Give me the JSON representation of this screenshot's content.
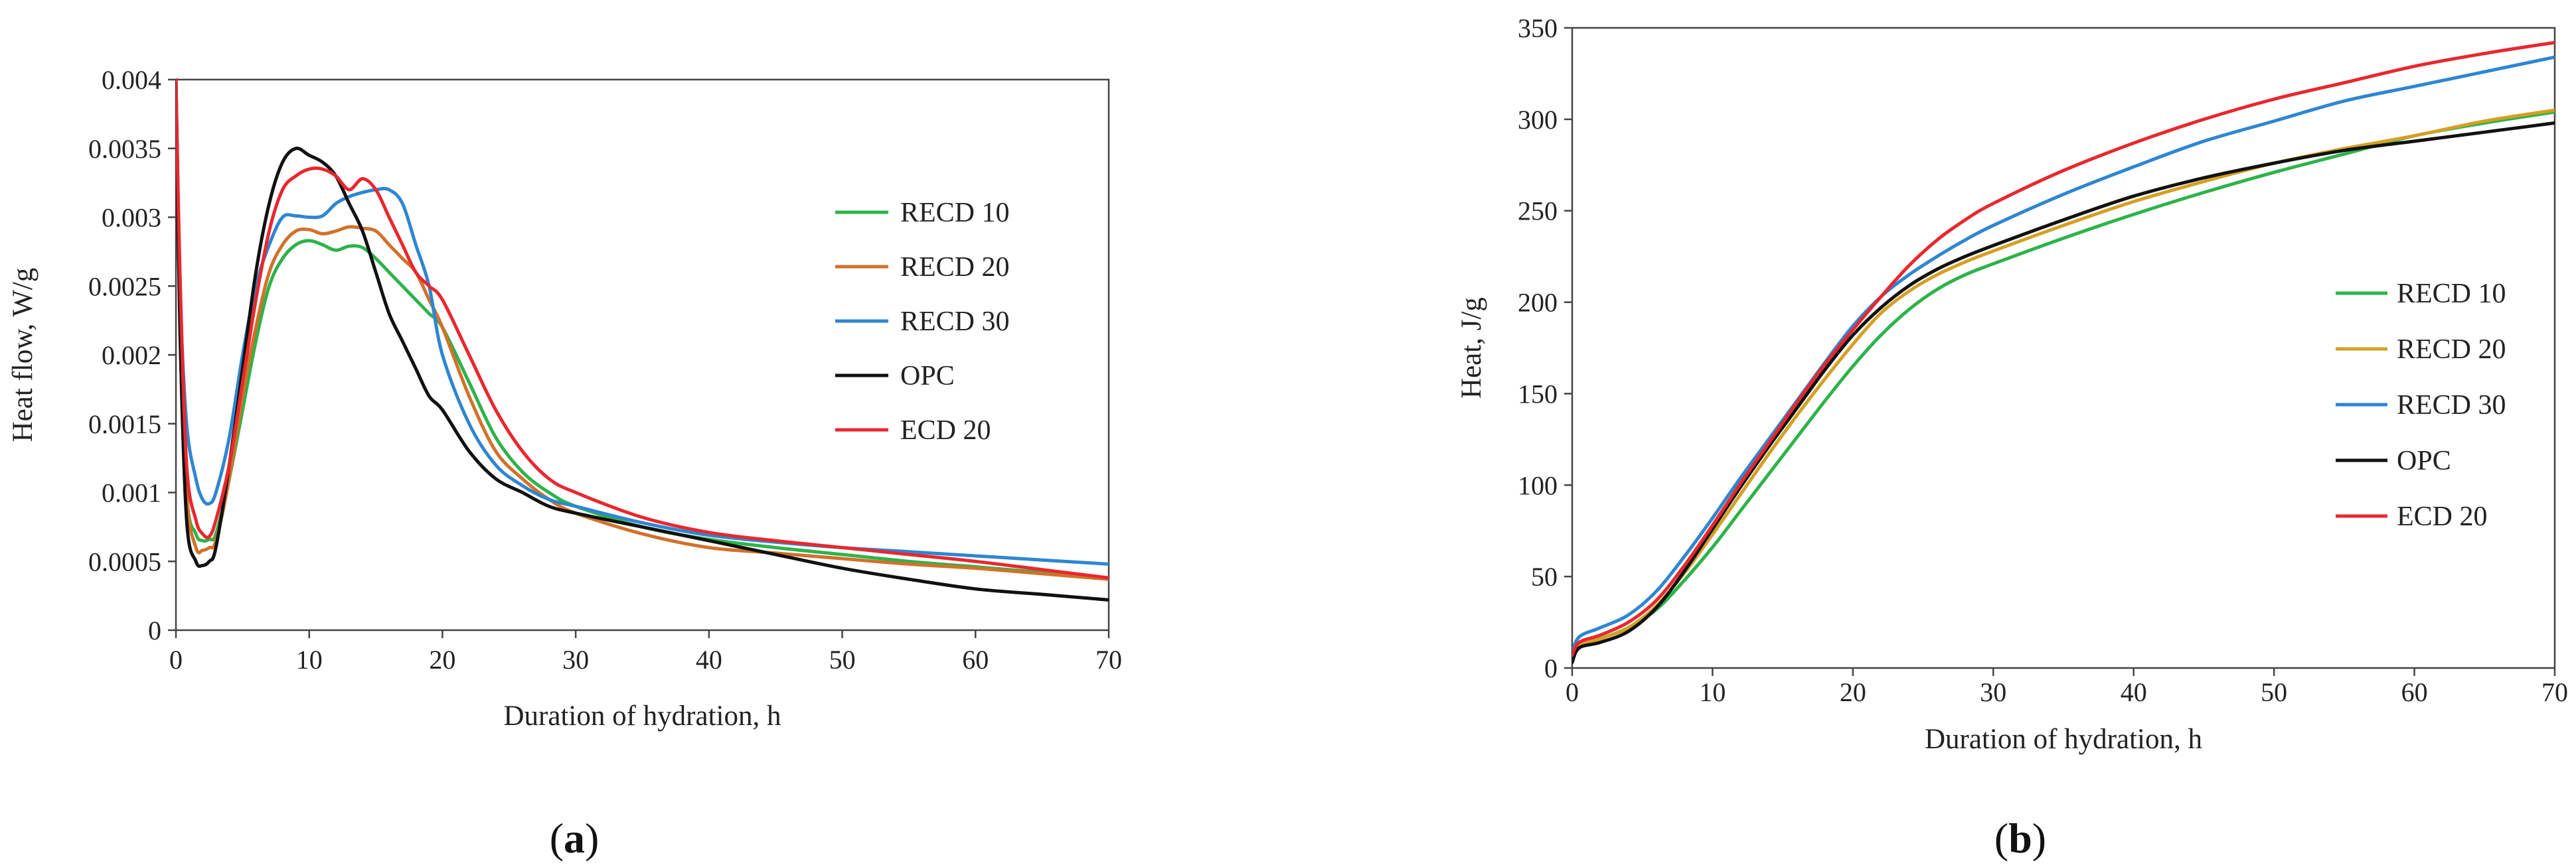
{
  "chart_data": [
    {
      "type": "line",
      "panel_label": "a",
      "title": "",
      "xlabel": "Duration of hydration, h",
      "ylabel": "Heat flow, W/g",
      "xlim": [
        0,
        70
      ],
      "ylim": [
        0,
        0.004
      ],
      "xticks": [
        "0",
        "10",
        "20",
        "30",
        "40",
        "50",
        "60",
        "70"
      ],
      "yticks": [
        "0",
        "0.0005",
        "0.001",
        "0.0015",
        "0.002",
        "0.0025",
        "0.003",
        "0.0035",
        "0.004"
      ],
      "grid": false,
      "legend_position": "right",
      "series": [
        {
          "name": "RECD 10",
          "color": "#2db34a",
          "x": [
            0,
            0.3,
            0.8,
            1.5,
            2,
            2.5,
            3,
            4,
            5,
            6,
            7,
            8,
            9,
            10,
            11,
            12,
            13,
            14,
            15,
            16,
            17,
            18,
            19,
            20,
            22,
            24,
            26,
            28,
            30,
            35,
            40,
            45,
            50,
            55,
            60,
            65,
            70
          ],
          "y": [
            0.004,
            0.0025,
            0.001,
            0.0007,
            0.00065,
            0.00066,
            0.0007,
            0.0011,
            0.0016,
            0.0021,
            0.0025,
            0.0027,
            0.0028,
            0.00283,
            0.0028,
            0.00276,
            0.00279,
            0.00278,
            0.0027,
            0.0026,
            0.0025,
            0.0024,
            0.0023,
            0.0022,
            0.0018,
            0.0014,
            0.00115,
            0.001,
            0.0009,
            0.00075,
            0.00066,
            0.0006,
            0.00055,
            0.0005,
            0.00046,
            0.00042,
            0.00038
          ]
        },
        {
          "name": "RECD 20",
          "color": "#d2712a",
          "x": [
            0,
            0.3,
            0.8,
            1.5,
            2,
            2.5,
            3,
            4,
            5,
            6,
            7,
            8,
            9,
            10,
            11,
            12,
            13,
            14,
            15,
            16,
            17,
            18,
            19,
            20,
            22,
            24,
            26,
            28,
            30,
            35,
            40,
            45,
            50,
            55,
            60,
            65,
            70
          ],
          "y": [
            0.004,
            0.0025,
            0.001,
            0.0006,
            0.00058,
            0.0006,
            0.00065,
            0.0011,
            0.0017,
            0.0022,
            0.0026,
            0.0028,
            0.0029,
            0.00291,
            0.00288,
            0.0029,
            0.00293,
            0.00292,
            0.0029,
            0.0028,
            0.0027,
            0.0026,
            0.0024,
            0.0022,
            0.0017,
            0.0013,
            0.0011,
            0.00095,
            0.00085,
            0.0007,
            0.0006,
            0.00056,
            0.00052,
            0.00048,
            0.00045,
            0.00041,
            0.00037
          ]
        },
        {
          "name": "RECD 30",
          "color": "#2e86d1",
          "x": [
            0,
            0.3,
            0.8,
            1.5,
            2,
            2.5,
            3,
            4,
            5,
            6,
            7,
            8,
            9,
            10,
            11,
            12,
            13,
            14,
            15,
            16,
            17,
            18,
            19,
            20,
            22,
            24,
            26,
            28,
            30,
            35,
            40,
            45,
            50,
            55,
            60,
            65,
            70
          ],
          "y": [
            0.004,
            0.0025,
            0.0015,
            0.0011,
            0.00095,
            0.00092,
            0.001,
            0.0014,
            0.002,
            0.0025,
            0.0028,
            0.003,
            0.00301,
            0.003,
            0.00301,
            0.0031,
            0.00315,
            0.00318,
            0.0032,
            0.0032,
            0.0031,
            0.0028,
            0.0025,
            0.002,
            0.0015,
            0.0012,
            0.00105,
            0.00095,
            0.0009,
            0.00078,
            0.00069,
            0.00064,
            0.0006,
            0.00057,
            0.00054,
            0.00051,
            0.00048
          ]
        },
        {
          "name": "OPC",
          "color": "#111111",
          "x": [
            0,
            0.3,
            0.8,
            1.5,
            2,
            2.5,
            3,
            4,
            5,
            6,
            7,
            8,
            9,
            10,
            11,
            12,
            13,
            14,
            15,
            16,
            17,
            18,
            19,
            20,
            22,
            24,
            26,
            28,
            30,
            35,
            40,
            45,
            50,
            55,
            60,
            65,
            70
          ],
          "y": [
            0.004,
            0.0022,
            0.0008,
            0.0005,
            0.00047,
            0.0005,
            0.0006,
            0.0012,
            0.0019,
            0.0026,
            0.0031,
            0.0034,
            0.0035,
            0.00345,
            0.0034,
            0.0033,
            0.0031,
            0.0029,
            0.0026,
            0.0023,
            0.0021,
            0.0019,
            0.0017,
            0.0016,
            0.0013,
            0.0011,
            0.001,
            0.0009,
            0.00085,
            0.00075,
            0.00065,
            0.00055,
            0.00045,
            0.00037,
            0.0003,
            0.00026,
            0.00022
          ]
        },
        {
          "name": "ECD 20",
          "color": "#e8282e",
          "x": [
            0,
            0.3,
            0.8,
            1.5,
            2,
            2.5,
            3,
            4,
            5,
            6,
            7,
            8,
            9,
            10,
            11,
            12,
            13,
            14,
            15,
            16,
            17,
            18,
            19,
            20,
            22,
            24,
            26,
            28,
            30,
            35,
            40,
            45,
            50,
            55,
            60,
            65,
            70
          ],
          "y": [
            0.004,
            0.0026,
            0.0012,
            0.0008,
            0.0007,
            0.00068,
            0.0008,
            0.0012,
            0.0018,
            0.0024,
            0.0029,
            0.0032,
            0.0033,
            0.00335,
            0.00335,
            0.0033,
            0.0032,
            0.00328,
            0.0032,
            0.003,
            0.0028,
            0.0026,
            0.0025,
            0.0024,
            0.002,
            0.0016,
            0.0013,
            0.0011,
            0.001,
            0.00082,
            0.00071,
            0.00065,
            0.0006,
            0.00055,
            0.0005,
            0.00044,
            0.00038
          ]
        }
      ]
    },
    {
      "type": "line",
      "panel_label": "b",
      "title": "",
      "xlabel": "Duration of hydration, h",
      "ylabel": "Heat, J/g",
      "xlim": [
        0,
        70
      ],
      "ylim": [
        0,
        350
      ],
      "xticks": [
        "0",
        "10",
        "20",
        "30",
        "40",
        "50",
        "60",
        "70"
      ],
      "yticks": [
        "0",
        "50",
        "100",
        "150",
        "200",
        "250",
        "300",
        "350"
      ],
      "grid": false,
      "legend_position": "right",
      "series": [
        {
          "name": "RECD 10",
          "color": "#2db34a",
          "x": [
            0,
            0.5,
            2,
            4,
            6,
            8,
            10,
            12,
            14,
            16,
            18,
            20,
            22,
            24,
            26,
            28,
            30,
            35,
            40,
            45,
            50,
            55,
            60,
            65,
            70
          ],
          "y": [
            5,
            12,
            16,
            22,
            32,
            48,
            66,
            86,
            106,
            126,
            146,
            165,
            182,
            196,
            207,
            215,
            221,
            235,
            248,
            260,
            271,
            281,
            291,
            298,
            304
          ]
        },
        {
          "name": "RECD 20",
          "color": "#d4a024",
          "x": [
            0,
            0.5,
            2,
            4,
            6,
            8,
            10,
            12,
            14,
            16,
            18,
            20,
            22,
            24,
            26,
            28,
            30,
            35,
            40,
            45,
            50,
            55,
            60,
            65,
            70
          ],
          "y": [
            5,
            12,
            16,
            22,
            34,
            52,
            73,
            95,
            117,
            138,
            158,
            177,
            194,
            206,
            215,
            222,
            228,
            242,
            255,
            266,
            276,
            284,
            291,
            299,
            305
          ]
        },
        {
          "name": "RECD 30",
          "color": "#2e86d1",
          "x": [
            0,
            0.5,
            2,
            4,
            6,
            8,
            10,
            12,
            14,
            16,
            18,
            20,
            22,
            24,
            26,
            28,
            30,
            35,
            40,
            45,
            50,
            55,
            60,
            65,
            70
          ],
          "y": [
            8,
            17,
            22,
            29,
            42,
            61,
            82,
            104,
            125,
            146,
            167,
            187,
            203,
            215,
            225,
            234,
            242,
            259,
            274,
            288,
            299,
            310,
            318,
            326,
            334
          ]
        },
        {
          "name": "OPC",
          "color": "#111111",
          "x": [
            0,
            0.5,
            2,
            4,
            6,
            8,
            10,
            12,
            14,
            16,
            18,
            20,
            22,
            24,
            26,
            28,
            30,
            35,
            40,
            45,
            50,
            55,
            60,
            65,
            70
          ],
          "y": [
            3,
            11,
            14,
            20,
            33,
            53,
            76,
            99,
            121,
            142,
            163,
            182,
            197,
            209,
            218,
            225,
            231,
            245,
            258,
            268,
            276,
            283,
            288,
            293,
            298
          ]
        },
        {
          "name": "ECD 20",
          "color": "#e8282e",
          "x": [
            0,
            0.5,
            2,
            4,
            6,
            8,
            10,
            12,
            14,
            16,
            18,
            20,
            22,
            24,
            26,
            28,
            30,
            35,
            40,
            45,
            50,
            55,
            60,
            65,
            70
          ],
          "y": [
            7,
            14,
            18,
            25,
            37,
            56,
            78,
            101,
            123,
            145,
            166,
            185,
            203,
            220,
            234,
            245,
            254,
            272,
            287,
            300,
            311,
            320,
            329,
            336,
            342
          ]
        }
      ]
    }
  ]
}
